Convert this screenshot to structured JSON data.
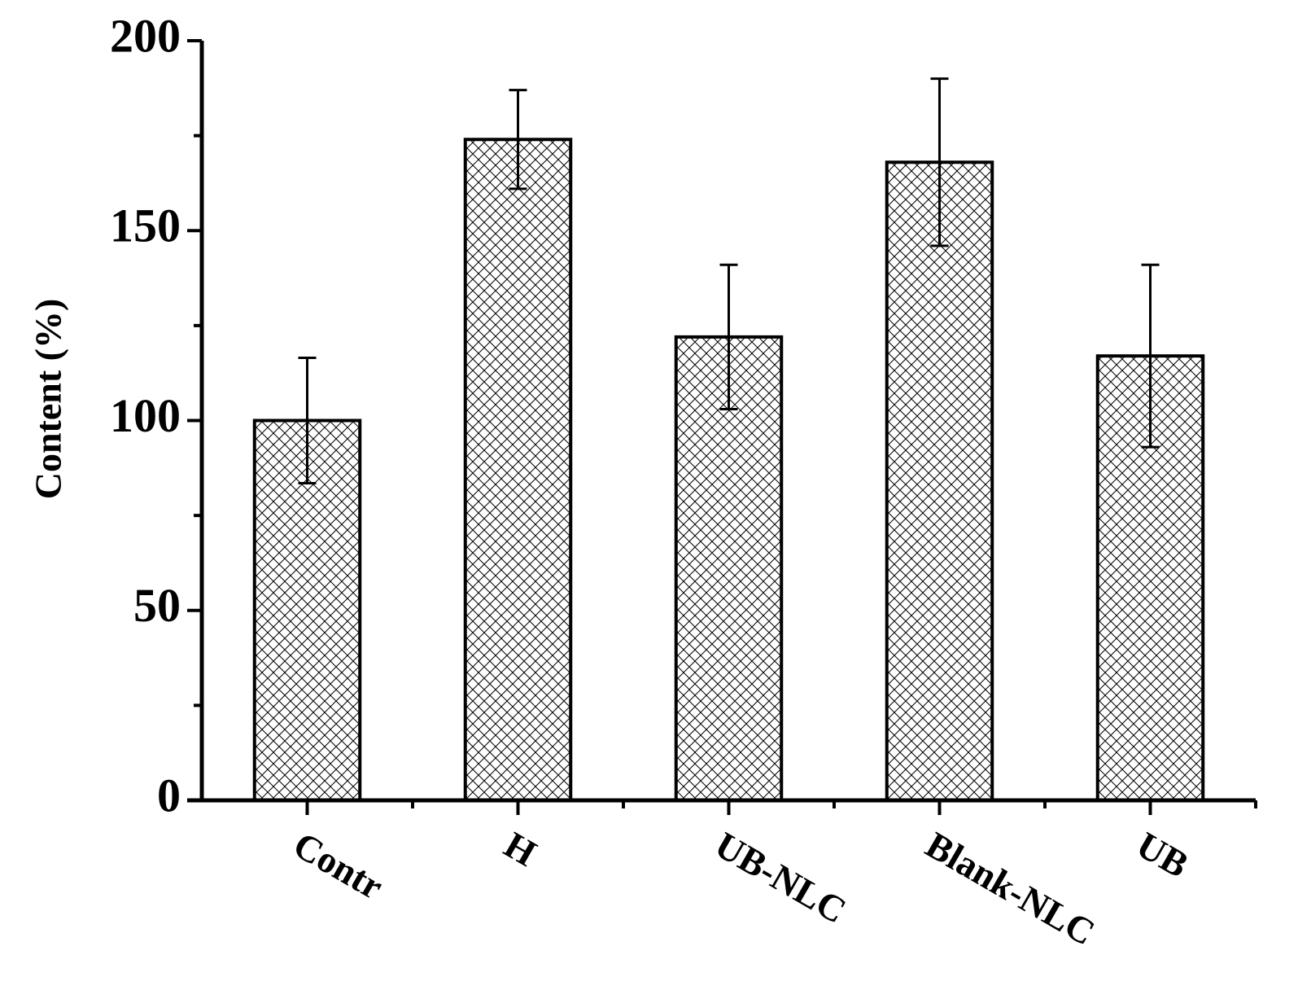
{
  "chart_data": {
    "type": "bar",
    "y_label": "Content (%)",
    "categories": [
      "Contr",
      "H",
      "UB-NLC",
      "Blank-NLC",
      "UB"
    ],
    "values": [
      100,
      174,
      122,
      168,
      117
    ],
    "errors": [
      16.5,
      13,
      19,
      22,
      24
    ],
    "color": "#000000",
    "ylim": [
      0,
      200
    ],
    "yticks": [
      0,
      50,
      100,
      150,
      200
    ],
    "minor_yticks": [
      25,
      75,
      125,
      175
    ],
    "grid": false
  }
}
